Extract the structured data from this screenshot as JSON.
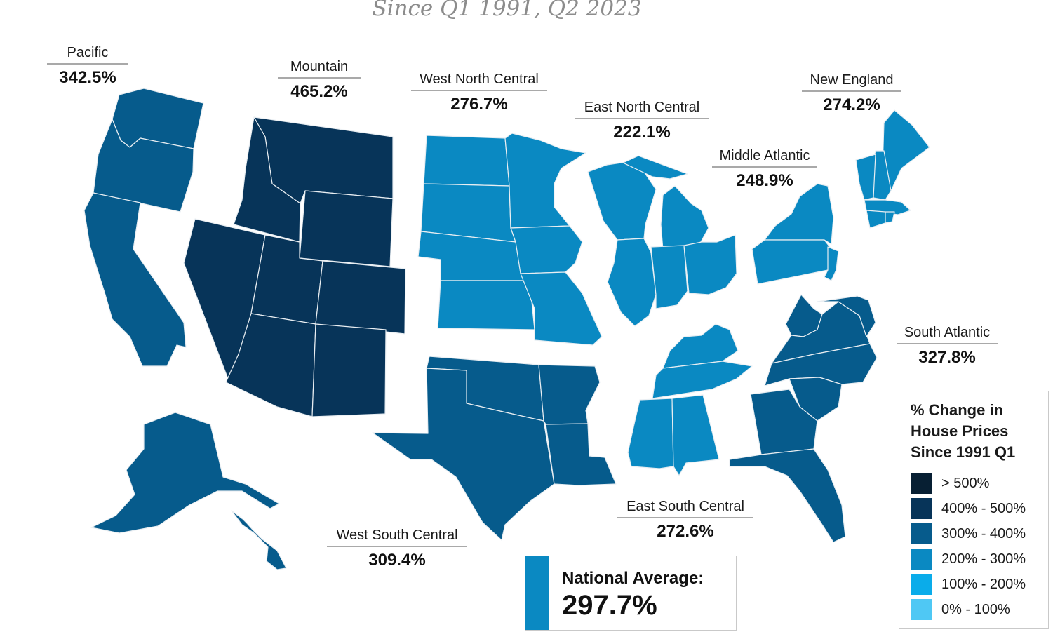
{
  "subtitle": "Since Q1 1991, Q2 2023",
  "colors": {
    "gt500": "#071f33",
    "c400_500": "#073459",
    "c300_400": "#065b8c",
    "c200_300": "#0a89c2",
    "c100_200": "#0aacea",
    "c0_100": "#4fc8f4"
  },
  "regions": [
    {
      "id": "pacific",
      "name": "Pacific",
      "value": "342.5%",
      "bin": "c300_400"
    },
    {
      "id": "mountain",
      "name": "Mountain",
      "value": "465.2%",
      "bin": "c400_500"
    },
    {
      "id": "wnc",
      "name": "West North Central",
      "value": "276.7%",
      "bin": "c200_300"
    },
    {
      "id": "enc",
      "name": "East North Central",
      "value": "222.1%",
      "bin": "c200_300"
    },
    {
      "id": "ne",
      "name": "New England",
      "value": "274.2%",
      "bin": "c200_300"
    },
    {
      "id": "ma",
      "name": "Middle Atlantic",
      "value": "248.9%",
      "bin": "c200_300"
    },
    {
      "id": "sa",
      "name": "South Atlantic",
      "value": "327.8%",
      "bin": "c300_400"
    },
    {
      "id": "esc",
      "name": "East South Central",
      "value": "272.6%",
      "bin": "c200_300"
    },
    {
      "id": "wsc",
      "name": "West South Central",
      "value": "309.4%",
      "bin": "c300_400"
    }
  ],
  "legend": {
    "title": "% Change in House Prices Since 1991 Q1",
    "items": [
      {
        "label": "> 500%",
        "bin": "gt500"
      },
      {
        "label": "400% - 500%",
        "bin": "c400_500"
      },
      {
        "label": "300% - 400%",
        "bin": "c300_400"
      },
      {
        "label": "200% - 300%",
        "bin": "c200_300"
      },
      {
        "label": "100% - 200%",
        "bin": "c100_200"
      },
      {
        "label": "0% - 100%",
        "bin": "c0_100"
      }
    ]
  },
  "national": {
    "label": "National Average:",
    "value": "297.7%"
  }
}
